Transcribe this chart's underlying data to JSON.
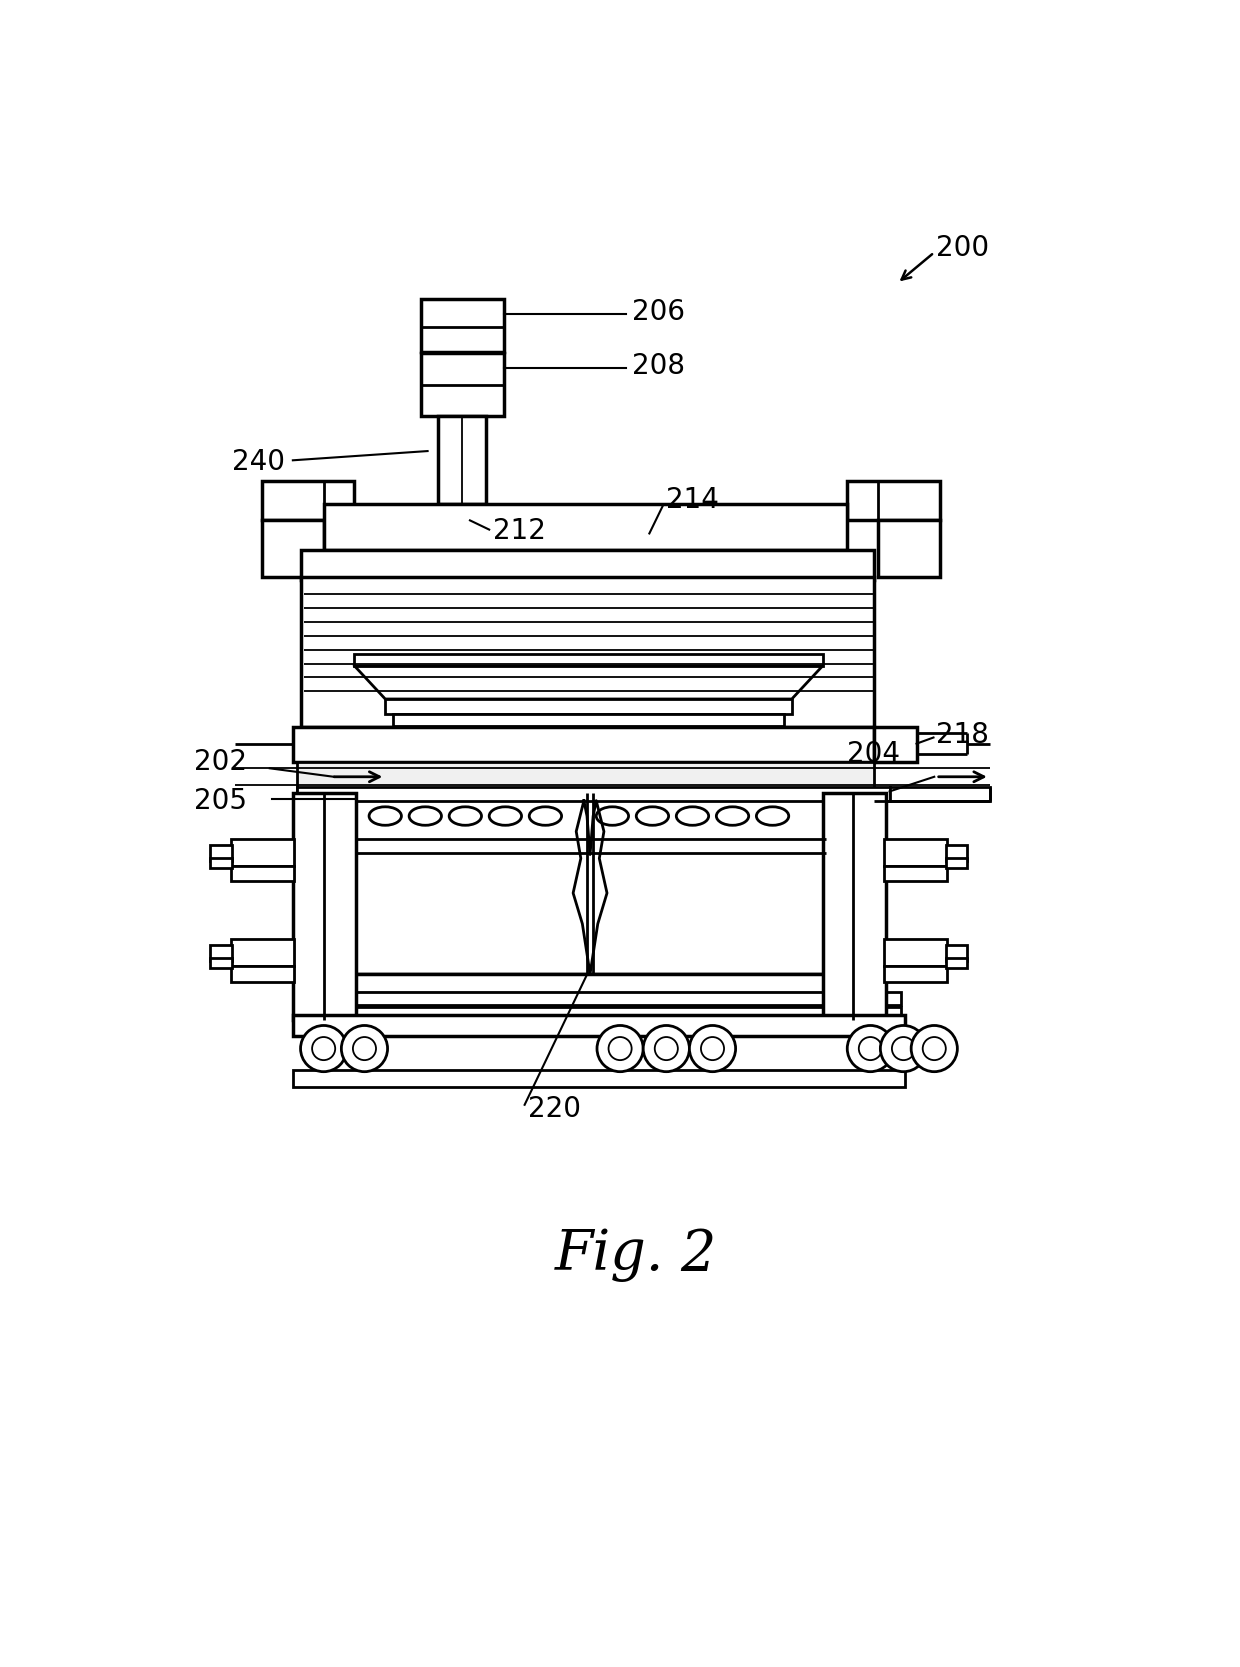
{
  "bg": "#ffffff",
  "lc": "#000000",
  "fig_label": "Fig. 2",
  "fig_fs": 40,
  "ann_fs": 20,
  "lw": 2.0,
  "lwt": 2.5,
  "lwn": 1.3
}
